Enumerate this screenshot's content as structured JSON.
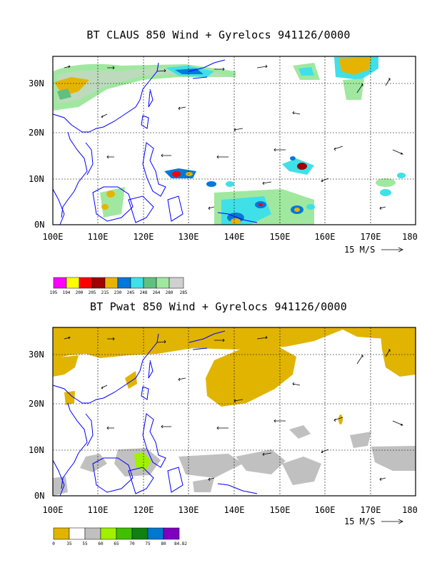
{
  "panel1": {
    "title": "BT CLAUS 850 Wind + Gyrelocs 941126/0000",
    "scale_label": "15 M/S",
    "legend_values": [
      "195",
      "194",
      "200",
      "205",
      "215",
      "230",
      "245",
      "248",
      "264",
      "280",
      "285"
    ],
    "legend_colors": [
      "#ff00ff",
      "#ffff00",
      "#ff0000",
      "#a00000",
      "#e6b400",
      "#0078dc",
      "#40e0e8",
      "#60c080",
      "#a0e8a0",
      "#d0d0d0"
    ]
  },
  "panel2": {
    "title": "BT Pwat 850 Wind + Gyrelocs 941126/0000",
    "scale_label": "15 M/S",
    "legend_values": [
      "0",
      "35",
      "55",
      "60",
      "65",
      "70",
      "75",
      "80",
      "84.82"
    ],
    "legend_colors": [
      "#e0b400",
      "#ffffff",
      "#c0c0c0",
      "#a0f000",
      "#40c000",
      "#108010",
      "#0078d0",
      "#8000c0"
    ]
  },
  "axes": {
    "lon_labels": [
      "100E",
      "110E",
      "120E",
      "130E",
      "140E",
      "150E",
      "160E",
      "170E",
      "180"
    ],
    "lat_labels": [
      "30N",
      "20N",
      "10N",
      "0N"
    ]
  },
  "colors": {
    "coast": "#0000ff",
    "gold": "#e0b400",
    "gray": "#c0c0c0"
  }
}
